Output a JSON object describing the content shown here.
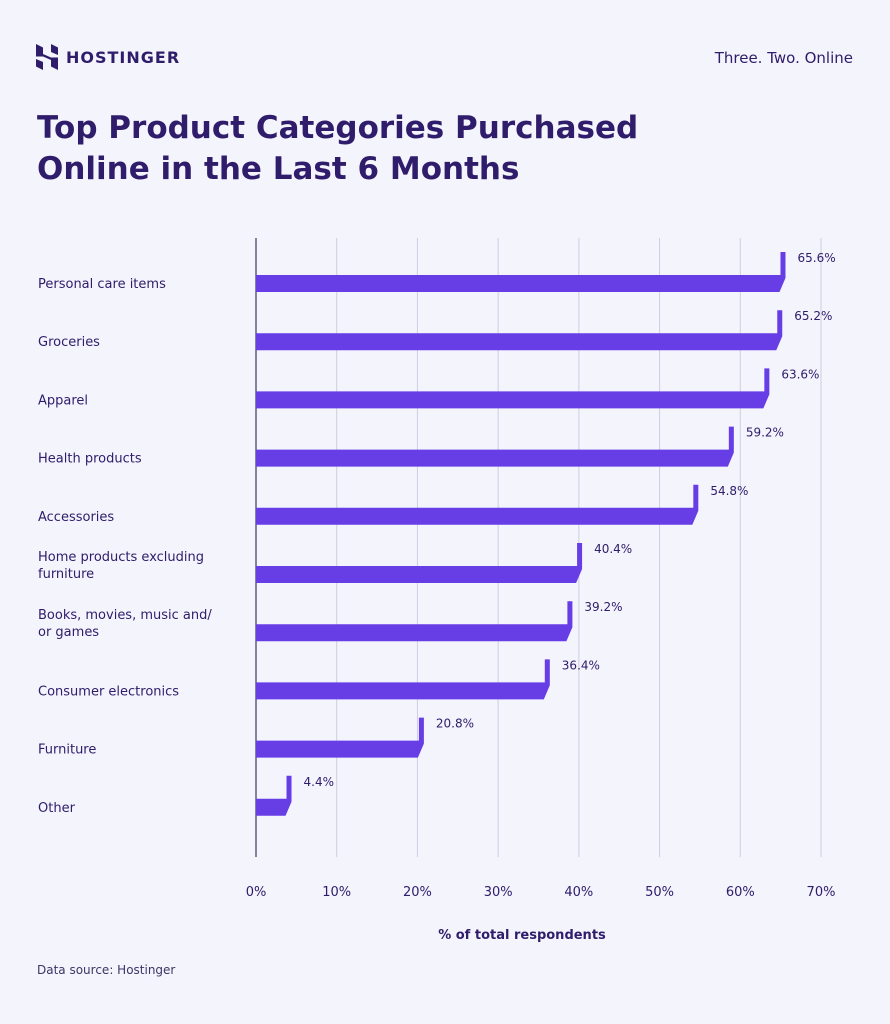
{
  "brand": {
    "name": "HOSTINGER",
    "tagline": "Three. Two. Online",
    "logo_icon": "hostinger-h-logo"
  },
  "footer": {
    "source": "Data source: Hostinger"
  },
  "colors": {
    "bar": "#673de6",
    "text": "#2f1c6a",
    "background": "#f4f4fd",
    "grid": "#cfcde0"
  },
  "chart_data": {
    "type": "bar",
    "orientation": "horizontal",
    "title": "Top Product Categories Purchased Online in the Last 6 Months",
    "xlabel": "% of total respondents",
    "ylabel": "",
    "xlim": [
      0,
      70
    ],
    "grid": true,
    "categories": [
      [
        "Personal care items"
      ],
      [
        "Groceries"
      ],
      [
        "Apparel"
      ],
      [
        "Health products"
      ],
      [
        "Accessories"
      ],
      [
        "Home products excluding",
        "furniture"
      ],
      [
        "Books, movies, music and/",
        "or games"
      ],
      [
        "Consumer electronics"
      ],
      [
        "Furniture"
      ],
      [
        "Other"
      ]
    ],
    "values": [
      65.6,
      65.2,
      63.6,
      59.2,
      54.8,
      40.4,
      39.2,
      36.4,
      20.8,
      4.4
    ],
    "value_labels": [
      "65.6%",
      "65.2%",
      "63.6%",
      "59.2%",
      "54.8%",
      "40.4%",
      "39.2%",
      "36.4%",
      "20.8%",
      "4.4%"
    ],
    "x_ticks": [
      0,
      10,
      20,
      30,
      40,
      50,
      60,
      70
    ],
    "x_tick_labels": [
      "0%",
      "10%",
      "20%",
      "30%",
      "40%",
      "50%",
      "60%",
      "70%"
    ]
  }
}
